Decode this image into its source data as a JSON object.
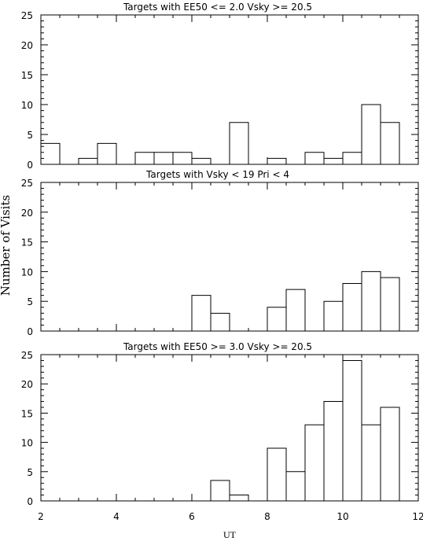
{
  "ylabel": "Number of Visits",
  "xlabel": "UT",
  "chart_data": [
    {
      "type": "histogram",
      "title": "Targets with EE50 <= 2.0 Vsky >= 20.5",
      "xlim": [
        2,
        12
      ],
      "ylim": [
        0,
        25
      ],
      "x_ticks": [
        2,
        4,
        6,
        8,
        10,
        12
      ],
      "y_ticks": [
        0,
        5,
        10,
        15,
        20,
        25
      ],
      "bin_width": 0.5,
      "bin_starts": [
        2,
        2.5,
        3,
        3.5,
        4,
        4.5,
        5,
        5.5,
        6,
        6.5,
        7,
        7.5,
        8,
        8.5,
        9,
        9.5,
        10,
        10.5,
        11,
        11.5
      ],
      "values": [
        3.5,
        0,
        1,
        3.5,
        0,
        2,
        2,
        2,
        1,
        0,
        7,
        0,
        1,
        0,
        2,
        1,
        2,
        10,
        7,
        0
      ]
    },
    {
      "type": "histogram",
      "title": "Targets with Vsky < 19 Pri < 4",
      "xlim": [
        2,
        12
      ],
      "ylim": [
        0,
        25
      ],
      "x_ticks": [
        2,
        4,
        6,
        8,
        10,
        12
      ],
      "y_ticks": [
        0,
        5,
        10,
        15,
        20,
        25
      ],
      "bin_width": 0.5,
      "bin_starts": [
        2,
        2.5,
        3,
        3.5,
        4,
        4.5,
        5,
        5.5,
        6,
        6.5,
        7,
        7.5,
        8,
        8.5,
        9,
        9.5,
        10,
        10.5,
        11,
        11.5
      ],
      "values": [
        0,
        0,
        0,
        0,
        0,
        0,
        0,
        0,
        6,
        3,
        0,
        0,
        4,
        7,
        0,
        5,
        8,
        10,
        9,
        0
      ]
    },
    {
      "type": "histogram",
      "title": "Targets with EE50 >= 3.0 Vsky >= 20.5",
      "xlim": [
        2,
        12
      ],
      "ylim": [
        0,
        25
      ],
      "x_ticks": [
        2,
        4,
        6,
        8,
        10,
        12
      ],
      "y_ticks": [
        0,
        5,
        10,
        15,
        20,
        25
      ],
      "bin_width": 0.5,
      "bin_starts": [
        2,
        2.5,
        3,
        3.5,
        4,
        4.5,
        5,
        5.5,
        6,
        6.5,
        7,
        7.5,
        8,
        8.5,
        9,
        9.5,
        10,
        10.5,
        11,
        11.5
      ],
      "values": [
        0,
        0,
        0,
        0,
        0,
        0,
        0,
        0,
        0,
        3.5,
        1,
        0,
        9,
        5,
        13,
        17,
        24,
        13,
        16,
        0
      ]
    }
  ]
}
